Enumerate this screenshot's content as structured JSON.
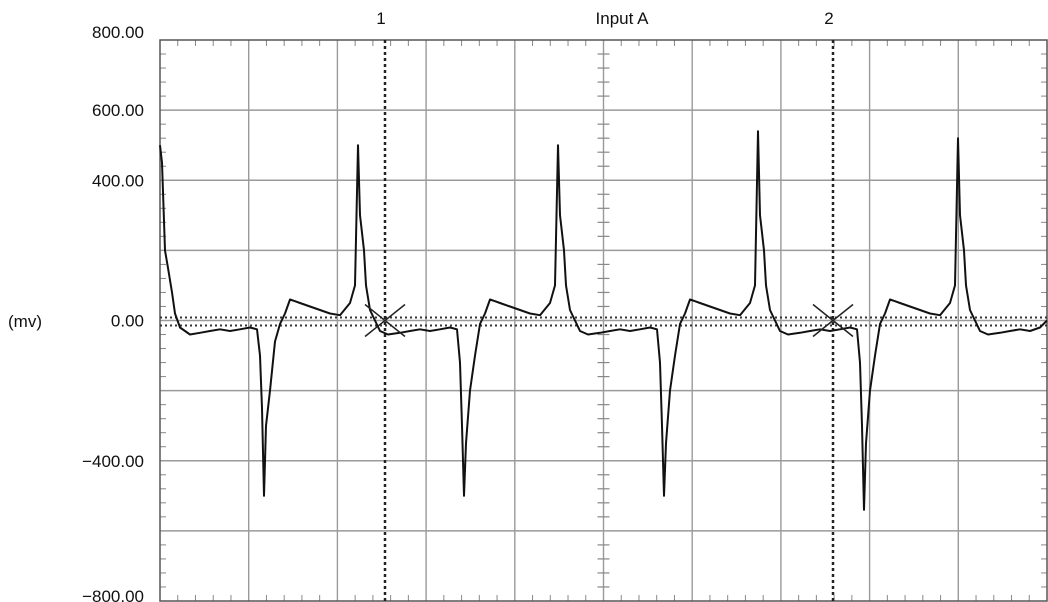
{
  "chart_data": {
    "type": "line",
    "title": "Input A",
    "xlabel": "",
    "ylabel": "(mv)",
    "ylim": [
      -800,
      800
    ],
    "xlim": [
      0,
      887
    ],
    "grid": true,
    "y_ticks": [
      {
        "value": 800,
        "label": "800.00"
      },
      {
        "value": 600,
        "label": "600.00"
      },
      {
        "value": 400,
        "label": "400.00"
      },
      {
        "value": 0,
        "label": "0.00"
      },
      {
        "value": -400,
        "label": "−400.00"
      },
      {
        "value": -800,
        "label": "−800.00"
      }
    ],
    "trigger_level": 0,
    "cursors": [
      {
        "label": "1",
        "x": 225,
        "y": 0
      },
      {
        "label": "2",
        "x": 673,
        "y": 0
      }
    ],
    "series": [
      {
        "x": [
          0,
          2,
          5,
          8,
          12,
          15,
          20,
          30,
          40,
          50,
          60,
          70,
          80,
          90,
          97,
          100,
          102,
          104,
          106,
          110,
          115,
          120,
          125,
          130,
          135,
          140,
          150,
          160,
          170,
          180,
          190,
          195,
          198,
          200,
          202,
          204,
          206,
          210,
          215,
          220,
          228,
          240,
          250,
          260,
          270,
          280,
          290,
          297,
          300,
          302,
          304,
          306,
          310,
          315,
          320,
          325,
          330,
          335,
          340,
          350,
          360,
          370,
          380,
          390,
          395,
          398,
          400,
          402,
          404,
          406,
          410,
          415,
          420,
          428,
          440,
          450,
          460,
          470,
          480,
          490,
          497,
          500,
          502,
          504,
          506,
          510,
          515,
          520,
          525,
          530,
          535,
          540,
          550,
          560,
          570,
          580,
          590,
          595,
          598,
          600,
          602,
          604,
          606,
          610,
          615,
          620,
          628,
          640,
          650,
          660,
          670,
          680,
          690,
          697,
          700,
          702,
          704,
          706,
          710,
          715,
          720,
          725,
          730,
          735,
          740,
          750,
          760,
          770,
          780,
          790,
          795,
          798,
          800,
          802,
          804,
          806,
          810,
          815,
          820,
          828,
          840,
          850,
          860,
          870,
          880,
          887
        ],
        "y": [
          500,
          450,
          200,
          150,
          80,
          20,
          -20,
          -40,
          -35,
          -30,
          -25,
          -30,
          -25,
          -20,
          -25,
          -100,
          -250,
          -500,
          -300,
          -200,
          -60,
          -10,
          20,
          60,
          55,
          50,
          40,
          30,
          20,
          15,
          50,
          100,
          500,
          300,
          250,
          200,
          100,
          30,
          0,
          -30,
          -40,
          -35,
          -30,
          -25,
          -30,
          -25,
          -20,
          -25,
          -120,
          -300,
          -500,
          -350,
          -200,
          -100,
          -10,
          20,
          60,
          55,
          50,
          40,
          30,
          20,
          15,
          50,
          100,
          500,
          300,
          250,
          200,
          100,
          30,
          0,
          -30,
          -40,
          -35,
          -30,
          -25,
          -30,
          -25,
          -20,
          -25,
          -120,
          -300,
          -500,
          -350,
          -200,
          -100,
          -10,
          20,
          60,
          55,
          50,
          40,
          30,
          20,
          15,
          50,
          100,
          540,
          300,
          250,
          200,
          100,
          30,
          0,
          -30,
          -40,
          -35,
          -30,
          -25,
          -30,
          -25,
          -20,
          -25,
          -120,
          -300,
          -540,
          -350,
          -200,
          -100,
          -10,
          20,
          60,
          55,
          50,
          40,
          30,
          20,
          15,
          50,
          100,
          520,
          300,
          250,
          200,
          100,
          30,
          0,
          -30,
          -40,
          -35,
          -30,
          -25,
          -30,
          -20,
          0
        ]
      }
    ]
  }
}
